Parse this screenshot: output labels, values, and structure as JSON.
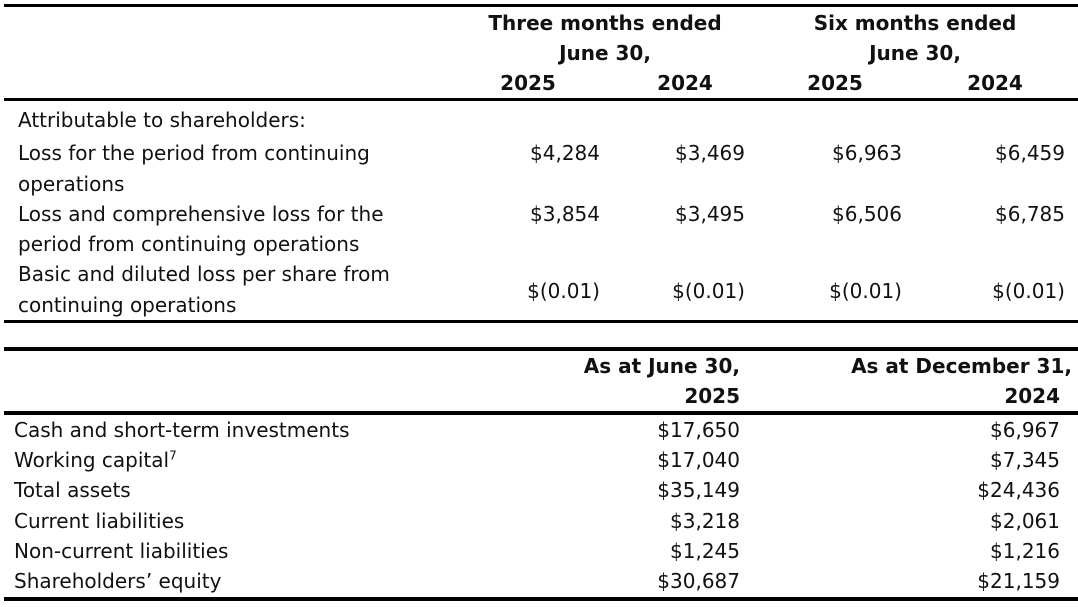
{
  "table1": {
    "header": {
      "three_months_line1": "Three months ended",
      "three_months_line2": "June 30,",
      "six_months_line1": "Six months ended",
      "six_months_line2": "June 30,",
      "years": [
        "2025",
        "2024",
        "2025",
        "2024"
      ]
    },
    "section_label": "Attributable to shareholders:",
    "rows": [
      {
        "label_line1": "Loss for the period from continuing",
        "label_line2": "operations",
        "values": [
          "$4,284",
          "$3,469",
          "$6,963",
          "$6,459"
        ]
      },
      {
        "label_line1": "Loss and comprehensive loss for the",
        "label_line2": "period from continuing operations",
        "values": [
          "$3,854",
          "$3,495",
          "$6,506",
          "$6,785"
        ]
      },
      {
        "label_line1": "Basic and diluted loss per share from",
        "label_line2": "continuing operations",
        "values": [
          "$(0.01)",
          "$(0.01)",
          "$(0.01)",
          "$(0.01)"
        ]
      }
    ]
  },
  "table2": {
    "header": {
      "col1_line1": "As at June 30,",
      "col1_line2": "2025",
      "col2_line1": "As at December 31,",
      "col2_line2": "2024"
    },
    "rows": [
      {
        "label": "Cash and short-term investments",
        "values": [
          "$17,650",
          "$6,967"
        ]
      },
      {
        "label": "Working capital",
        "footnote": "7",
        "values": [
          "$17,040",
          "$7,345"
        ]
      },
      {
        "label": "Total assets",
        "values": [
          "$35,149",
          "$24,436"
        ]
      },
      {
        "label": "Current liabilities",
        "values": [
          "$3,218",
          "$2,061"
        ]
      },
      {
        "label": "Non-current liabilities",
        "values": [
          "$1,245",
          "$1,216"
        ]
      },
      {
        "label": "Shareholders’ equity",
        "values": [
          "$30,687",
          "$21,159"
        ]
      }
    ]
  }
}
